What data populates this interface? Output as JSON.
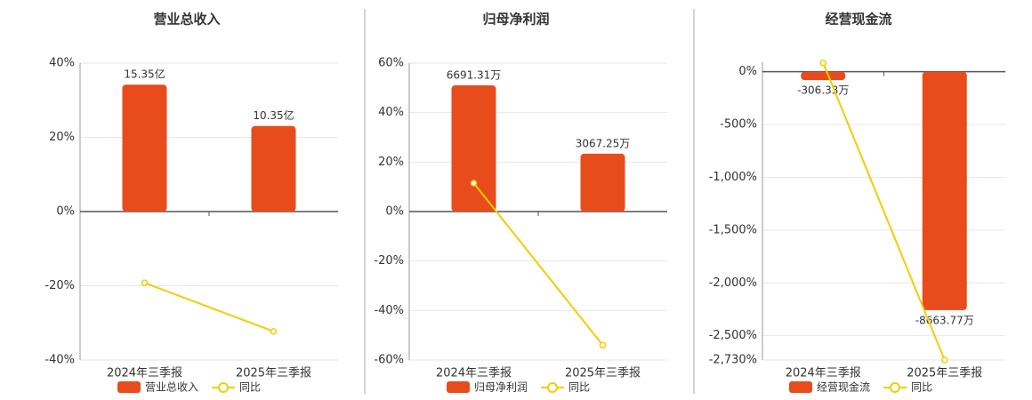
{
  "chart_data": [
    {
      "type": "combo",
      "title": "营业总收入",
      "categories": [
        "2024年三季报",
        "2025年三季报"
      ],
      "ylim": [
        -40,
        40
      ],
      "yticks": [
        {
          "value": -40,
          "label": "-40%"
        },
        {
          "value": -20,
          "label": "-20%"
        },
        {
          "value": 0,
          "label": "0%"
        },
        {
          "value": 20,
          "label": "20%"
        },
        {
          "value": 40,
          "label": "40%"
        }
      ],
      "y2lim": [
        -17.95,
        17.95
      ],
      "grid": true,
      "series": [
        {
          "name": "营业总收入",
          "type": "bar",
          "axis": "y2",
          "color": "#e84c1c",
          "values": [
            15.35,
            10.35
          ],
          "value_labels": [
            "15.35亿",
            "10.35亿"
          ]
        },
        {
          "name": "同比",
          "type": "line",
          "color": "#f5cd00",
          "values": [
            -19.2,
            -32.3
          ]
        }
      ]
    },
    {
      "type": "combo",
      "title": "归母净利润",
      "categories": [
        "2024年三季报",
        "2025年三季报"
      ],
      "ylim": [
        -60,
        60
      ],
      "yticks": [
        {
          "value": -60,
          "label": "-60%"
        },
        {
          "value": -40,
          "label": "-40%"
        },
        {
          "value": -20,
          "label": "-20%"
        },
        {
          "value": 0,
          "label": "0%"
        },
        {
          "value": 20,
          "label": "20%"
        },
        {
          "value": 40,
          "label": "40%"
        },
        {
          "value": 60,
          "label": "60%"
        }
      ],
      "y2lim": [
        -7872,
        7872
      ],
      "grid": true,
      "series": [
        {
          "name": "归母净利润",
          "type": "bar",
          "axis": "y2",
          "color": "#e84c1c",
          "values": [
            6691.31,
            3067.25
          ],
          "value_labels": [
            "6691.31万",
            "3067.25万"
          ]
        },
        {
          "name": "同比",
          "type": "line",
          "color": "#f5cd00",
          "values": [
            11.5,
            -54
          ]
        }
      ]
    },
    {
      "type": "combo",
      "title": "经营现金流",
      "categories": [
        "2024年三季报",
        "2025年三季报"
      ],
      "ylim": [
        -2730,
        90
      ],
      "yticks": [
        {
          "value": -2730,
          "label": "-2,730%"
        },
        {
          "value": -2500,
          "label": "-2,500%"
        },
        {
          "value": -2000,
          "label": "-2,000%"
        },
        {
          "value": -1500,
          "label": "-1,500%"
        },
        {
          "value": -1000,
          "label": "-1,000%"
        },
        {
          "value": -500,
          "label": "-500%"
        },
        {
          "value": 0,
          "label": "0%"
        }
      ],
      "y2lim": [
        -10475,
        345
      ],
      "grid": true,
      "series": [
        {
          "name": "经营现金流",
          "type": "bar",
          "axis": "y2",
          "color": "#e84c1c",
          "values": [
            -306.33,
            -8663.77
          ],
          "value_labels": [
            "-306.33万",
            "-8663.77万"
          ]
        },
        {
          "name": "同比",
          "type": "line",
          "color": "#f5cd00",
          "values": [
            83,
            -2730
          ]
        }
      ]
    }
  ]
}
